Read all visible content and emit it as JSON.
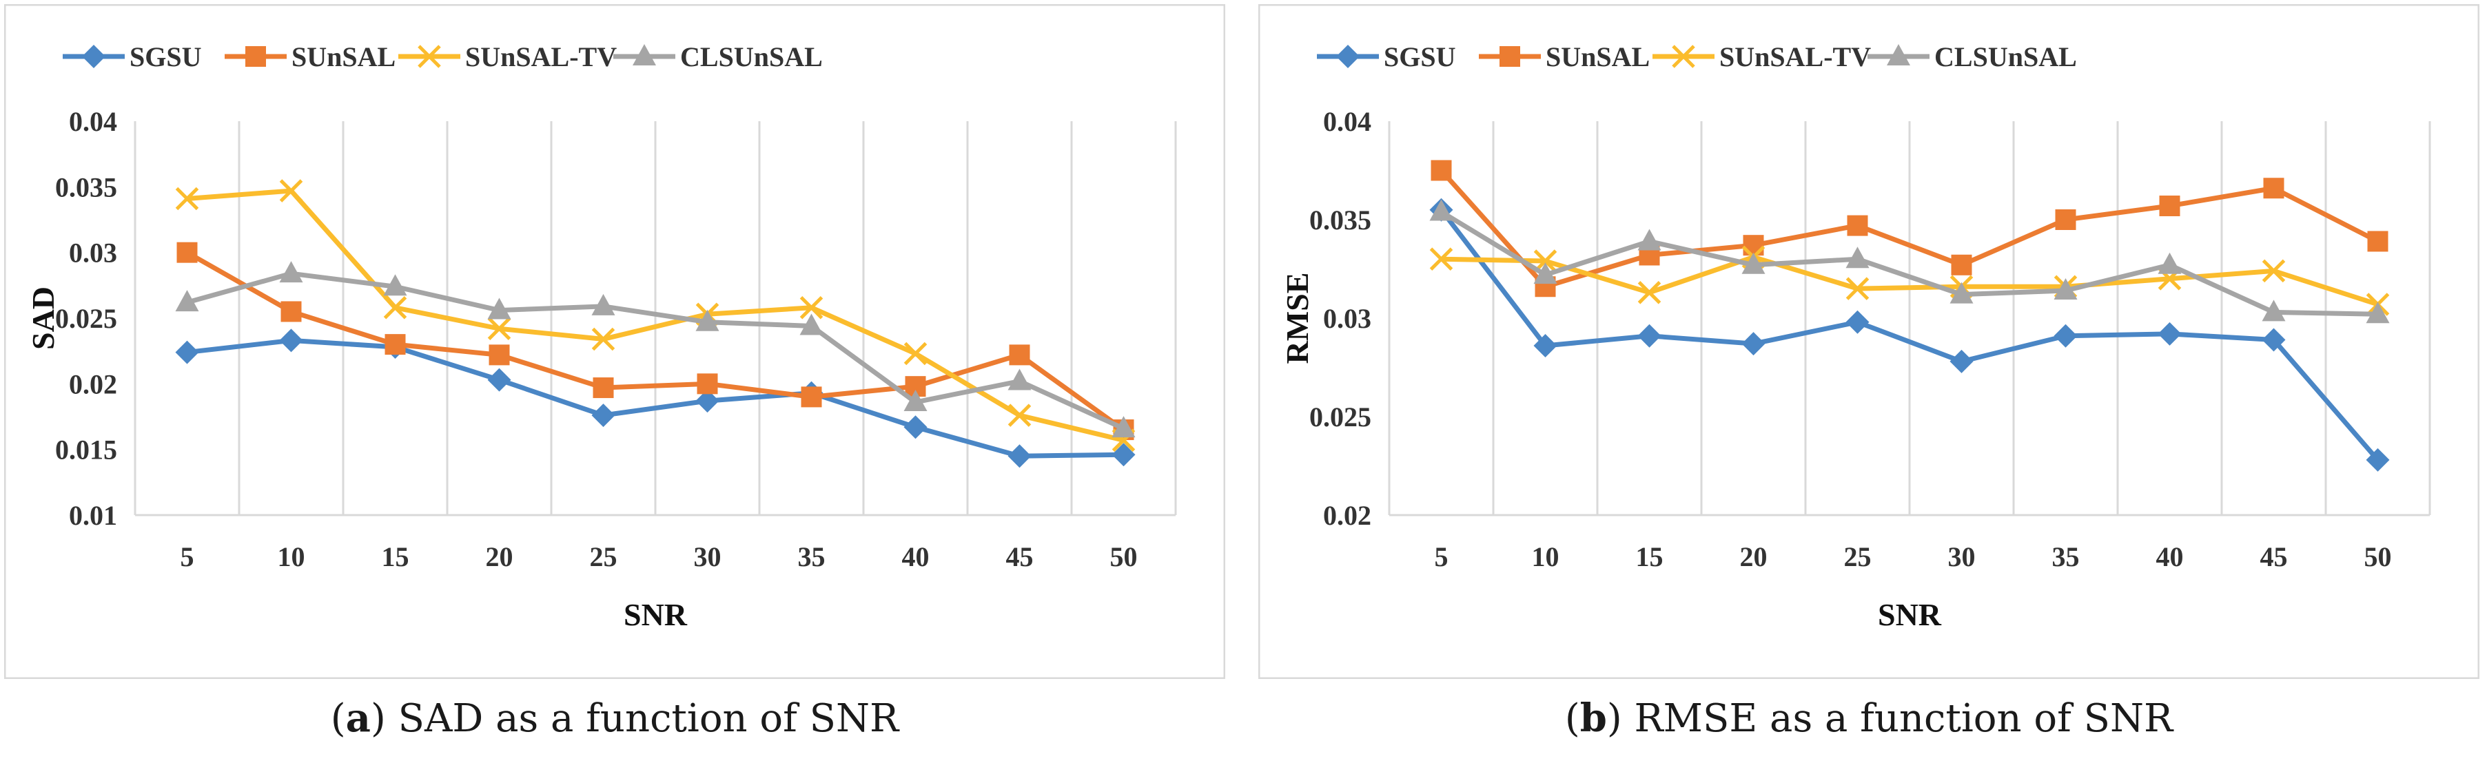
{
  "chart_data": [
    {
      "type": "line",
      "xlabel": "SNR",
      "ylabel": "SAD",
      "x": [
        5,
        10,
        15,
        20,
        25,
        30,
        35,
        40,
        45,
        50
      ],
      "ylim": [
        0.01,
        0.04
      ],
      "yticks": [
        "0.01",
        "0.015",
        "0.02",
        "0.025",
        "0.03",
        "0.035",
        "0.04"
      ],
      "grid": "vertical",
      "legend_position": "top",
      "series": [
        {
          "name": "SGSU",
          "color": "#4a86c5",
          "marker": "diamond",
          "values": [
            0.0224,
            0.0233,
            0.0228,
            0.0203,
            0.0176,
            0.0187,
            0.0193,
            0.0167,
            0.0145,
            0.0146
          ]
        },
        {
          "name": "SUnSAL",
          "color": "#ec7c31",
          "marker": "square",
          "values": [
            0.03,
            0.0255,
            0.023,
            0.0222,
            0.0197,
            0.02,
            0.019,
            0.0198,
            0.0222,
            0.0165
          ]
        },
        {
          "name": "SUnSAL-TV",
          "color": "#fbbc2d",
          "marker": "x",
          "values": [
            0.0341,
            0.0347,
            0.0258,
            0.0242,
            0.0234,
            0.0253,
            0.0258,
            0.0223,
            0.0176,
            0.0157
          ]
        },
        {
          "name": "CLSUnSAL",
          "color": "#a5a5a5",
          "marker": "triangle",
          "values": [
            0.0262,
            0.0284,
            0.0274,
            0.0256,
            0.0259,
            0.0247,
            0.0244,
            0.0186,
            0.0202,
            0.0166
          ]
        }
      ],
      "caption": {
        "letter": "a",
        "text": ") SAD as a function of SNR"
      }
    },
    {
      "type": "line",
      "xlabel": "SNR",
      "ylabel": "RMSE",
      "x": [
        5,
        10,
        15,
        20,
        25,
        30,
        35,
        40,
        45,
        50
      ],
      "ylim": [
        0.02,
        0.04
      ],
      "yticks": [
        "0.02",
        "0.025",
        "0.03",
        "0.035",
        "0.04"
      ],
      "grid": "vertical",
      "legend_position": "top",
      "series": [
        {
          "name": "SGSU",
          "color": "#4a86c5",
          "marker": "diamond",
          "values": [
            0.0355,
            0.0286,
            0.0291,
            0.0287,
            0.0298,
            0.0278,
            0.0291,
            0.0292,
            0.0289,
            0.0228
          ]
        },
        {
          "name": "SUnSAL",
          "color": "#ec7c31",
          "marker": "square",
          "values": [
            0.0375,
            0.0316,
            0.0332,
            0.0337,
            0.0347,
            0.0327,
            0.035,
            0.0357,
            0.0366,
            0.0339
          ]
        },
        {
          "name": "SUnSAL-TV",
          "color": "#fbbc2d",
          "marker": "x",
          "values": [
            0.033,
            0.0329,
            0.0313,
            0.0331,
            0.0315,
            0.0316,
            0.0316,
            0.032,
            0.0324,
            0.0307
          ]
        },
        {
          "name": "CLSUnSAL",
          "color": "#a5a5a5",
          "marker": "triangle",
          "values": [
            0.0354,
            0.0322,
            0.0339,
            0.0327,
            0.033,
            0.0312,
            0.0314,
            0.0327,
            0.0303,
            0.0302
          ]
        }
      ],
      "caption": {
        "letter": "b",
        "text": ") RMSE as a function of SNR"
      }
    }
  ]
}
